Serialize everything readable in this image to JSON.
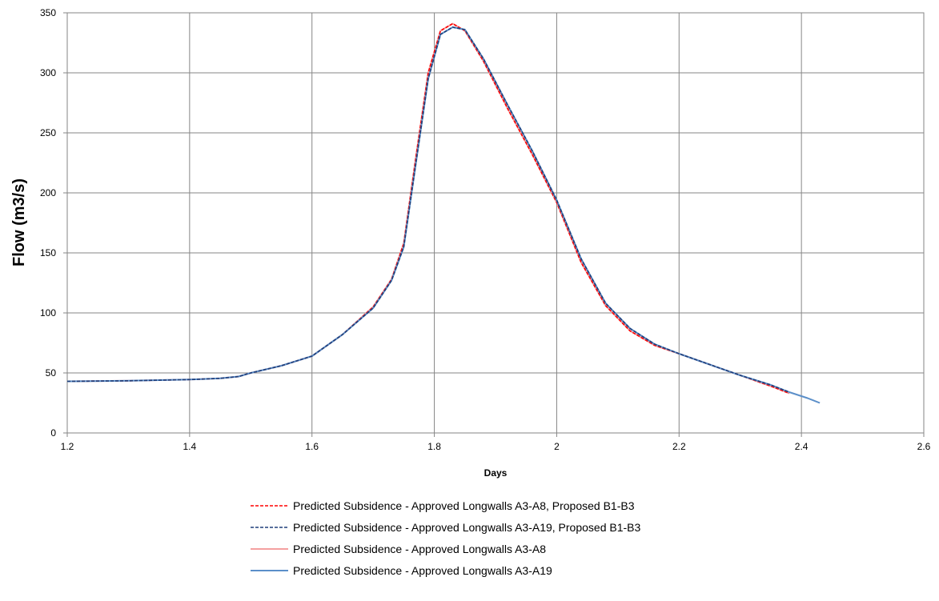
{
  "chart_data": {
    "type": "line",
    "title": "",
    "xlabel": "Days",
    "ylabel": "Flow (m3/s)",
    "xlim": [
      1.2,
      2.6
    ],
    "ylim": [
      0,
      350
    ],
    "x_ticks": [
      "1.2",
      "1.4",
      "1.6",
      "1.8",
      "2",
      "2.2",
      "2.4",
      "2.6"
    ],
    "y_ticks": [
      "0",
      "50",
      "100",
      "150",
      "200",
      "250",
      "300",
      "350"
    ],
    "grid": true,
    "legend_position": "bottom",
    "series": [
      {
        "name": "Predicted Subsidence - Approved Longwalls A3-A8, Proposed B1-B3",
        "color": "#ff0000",
        "style": "dashed",
        "x": [
          1.2,
          1.3,
          1.4,
          1.45,
          1.48,
          1.5,
          1.55,
          1.6,
          1.65,
          1.7,
          1.73,
          1.75,
          1.77,
          1.79,
          1.81,
          1.83,
          1.85,
          1.88,
          1.92,
          1.96,
          2.0,
          2.04,
          2.08,
          2.12,
          2.16,
          2.2,
          2.25,
          2.3,
          2.35,
          2.38
        ],
        "y": [
          43,
          43.5,
          44.5,
          45.5,
          47,
          50,
          56,
          64,
          82,
          105,
          128,
          158,
          230,
          300,
          335,
          341,
          335,
          310,
          270,
          232,
          192,
          142,
          106,
          85,
          73,
          66,
          57,
          48,
          39,
          33
        ]
      },
      {
        "name": "Predicted Subsidence - Approved Longwalls A3-A19, Proposed B1-B3",
        "color": "#1f3f7a",
        "style": "dashed",
        "x": [
          1.2,
          1.3,
          1.4,
          1.45,
          1.48,
          1.5,
          1.55,
          1.6,
          1.65,
          1.7,
          1.73,
          1.75,
          1.77,
          1.79,
          1.81,
          1.83,
          1.85,
          1.88,
          1.92,
          1.96,
          2.0,
          2.04,
          2.08,
          2.12,
          2.16,
          2.2,
          2.25,
          2.3,
          2.35,
          2.38
        ],
        "y": [
          43,
          43.5,
          44.5,
          45.5,
          47,
          50,
          56,
          64,
          82,
          104,
          127,
          155,
          225,
          295,
          332,
          338,
          336,
          312,
          273,
          235,
          194,
          145,
          108,
          87,
          74,
          66,
          57,
          48,
          40,
          34
        ]
      },
      {
        "name": "Predicted Subsidence - Approved Longwalls A3-A8",
        "color": "#f4a0a0",
        "style": "solid",
        "x": [
          1.2,
          1.3,
          1.4,
          1.45,
          1.48,
          1.5,
          1.55,
          1.6,
          1.65,
          1.7,
          1.73,
          1.75,
          1.77,
          1.79,
          1.81,
          1.83,
          1.85,
          1.88,
          1.92,
          1.96,
          2.0,
          2.04,
          2.08,
          2.12,
          2.16,
          2.2,
          2.25,
          2.3,
          2.35,
          2.38
        ],
        "y": [
          43,
          43.5,
          44.5,
          45.5,
          47,
          50,
          56,
          64,
          82,
          105,
          128,
          158,
          230,
          300,
          335,
          341,
          335,
          310,
          270,
          232,
          192,
          142,
          106,
          85,
          73,
          66,
          57,
          48,
          39,
          33
        ]
      },
      {
        "name": "Predicted Subsidence - Approved Longwalls A3-A19",
        "color": "#5b8fc9",
        "style": "solid",
        "x": [
          1.2,
          1.3,
          1.4,
          1.45,
          1.48,
          1.5,
          1.55,
          1.6,
          1.65,
          1.7,
          1.73,
          1.75,
          1.77,
          1.79,
          1.81,
          1.83,
          1.85,
          1.88,
          1.92,
          1.96,
          2.0,
          2.04,
          2.08,
          2.12,
          2.16,
          2.2,
          2.25,
          2.3,
          2.35,
          2.38,
          2.41,
          2.43
        ],
        "y": [
          43,
          43.5,
          44.5,
          45.5,
          47,
          50,
          56,
          64,
          82,
          104,
          127,
          155,
          225,
          295,
          332,
          338,
          336,
          312,
          273,
          235,
          194,
          145,
          108,
          87,
          74,
          66,
          57,
          48,
          40,
          34,
          29,
          25
        ]
      }
    ]
  }
}
